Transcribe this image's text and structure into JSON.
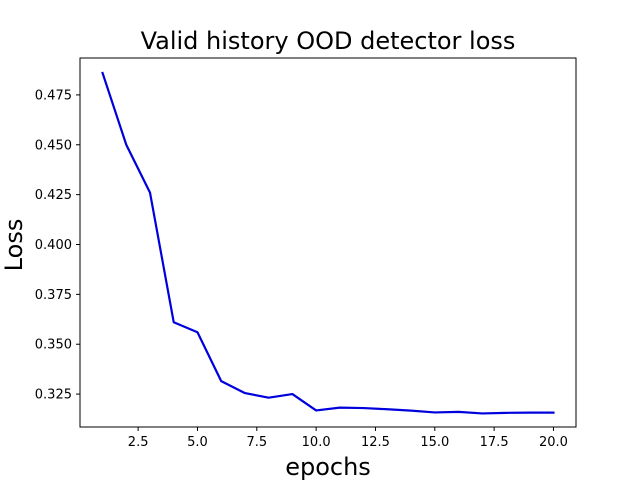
{
  "chart_data": {
    "type": "line",
    "title": "Valid history OOD detector loss",
    "xlabel": "epochs",
    "ylabel": "Loss",
    "xlim": [
      0.05,
      20.95
    ],
    "ylim": [
      0.3085,
      0.4935
    ],
    "x_ticks": [
      2.5,
      5.0,
      7.5,
      10.0,
      12.5,
      15.0,
      17.5,
      20.0
    ],
    "x_tick_labels": [
      "2.5",
      "5.0",
      "7.5",
      "10.0",
      "12.5",
      "15.0",
      "17.5",
      "20.0"
    ],
    "y_ticks": [
      0.325,
      0.35,
      0.375,
      0.4,
      0.425,
      0.45,
      0.475
    ],
    "y_tick_labels": [
      "0.325",
      "0.350",
      "0.375",
      "0.400",
      "0.425",
      "0.450",
      "0.475"
    ],
    "grid": false,
    "series": [
      {
        "color": "#0000dd",
        "x": [
          1,
          2,
          3,
          4,
          5,
          6,
          7,
          8,
          9,
          10,
          11,
          12,
          13,
          14,
          15,
          16,
          17,
          18,
          19,
          20
        ],
        "y": [
          0.486,
          0.45,
          0.426,
          0.361,
          0.356,
          0.3315,
          0.3255,
          0.3232,
          0.325,
          0.3168,
          0.3182,
          0.318,
          0.3174,
          0.3167,
          0.3158,
          0.3161,
          0.3153,
          0.3156,
          0.3157,
          0.3157
        ]
      }
    ]
  }
}
